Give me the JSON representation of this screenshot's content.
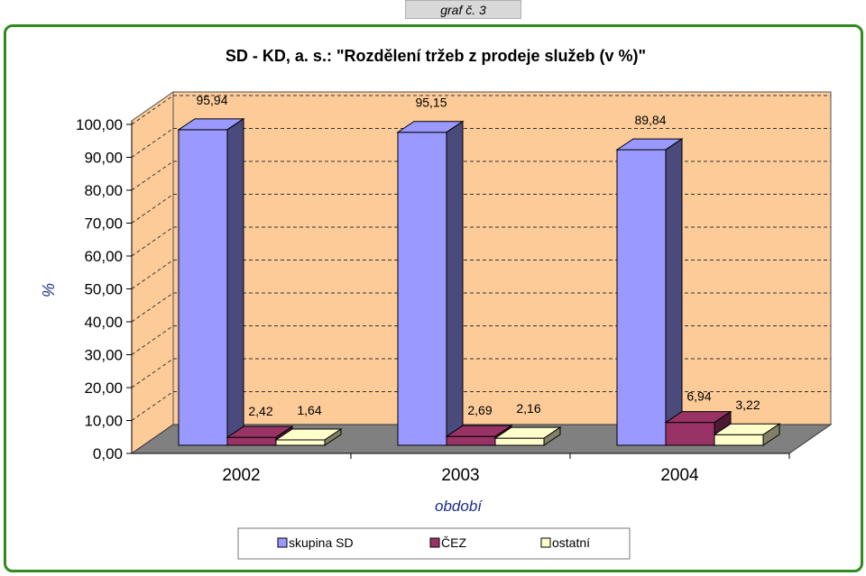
{
  "tab_label": "graf č. 3",
  "colors": {
    "frame": "#2e8b1e",
    "floor": "#808080",
    "back_wall": "#fccb98",
    "grid": "#333333"
  },
  "chart_data": {
    "type": "bar",
    "title": "SD - KD, a. s.: \"Rozdělení tržeb z prodeje služeb (v %)\"",
    "xlabel": "období",
    "ylabel": "%",
    "ylim": [
      0,
      100
    ],
    "yticks": [
      "0,00",
      "10,00",
      "20,00",
      "30,00",
      "40,00",
      "50,00",
      "60,00",
      "70,00",
      "80,00",
      "90,00",
      "100,00"
    ],
    "categories": [
      "2002",
      "2003",
      "2004"
    ],
    "series": [
      {
        "name": "skupina SD",
        "values": [
          95.94,
          95.15,
          89.84
        ],
        "labels": [
          "95,94",
          "95,15",
          "89,84"
        ],
        "color": "#9999ff",
        "side": "#4a4a7c"
      },
      {
        "name": "ČEZ",
        "values": [
          2.42,
          2.69,
          6.94
        ],
        "labels": [
          "2,42",
          "2,69",
          "6,94"
        ],
        "color": "#993366",
        "side": "#4d1933"
      },
      {
        "name": "ostatní",
        "values": [
          1.64,
          2.16,
          3.22
        ],
        "labels": [
          "1,64",
          "2,16",
          "3,22"
        ],
        "color": "#ffffcc",
        "side": "#808066"
      }
    ],
    "legend_position": "bottom",
    "grid": true,
    "view": "3d"
  }
}
